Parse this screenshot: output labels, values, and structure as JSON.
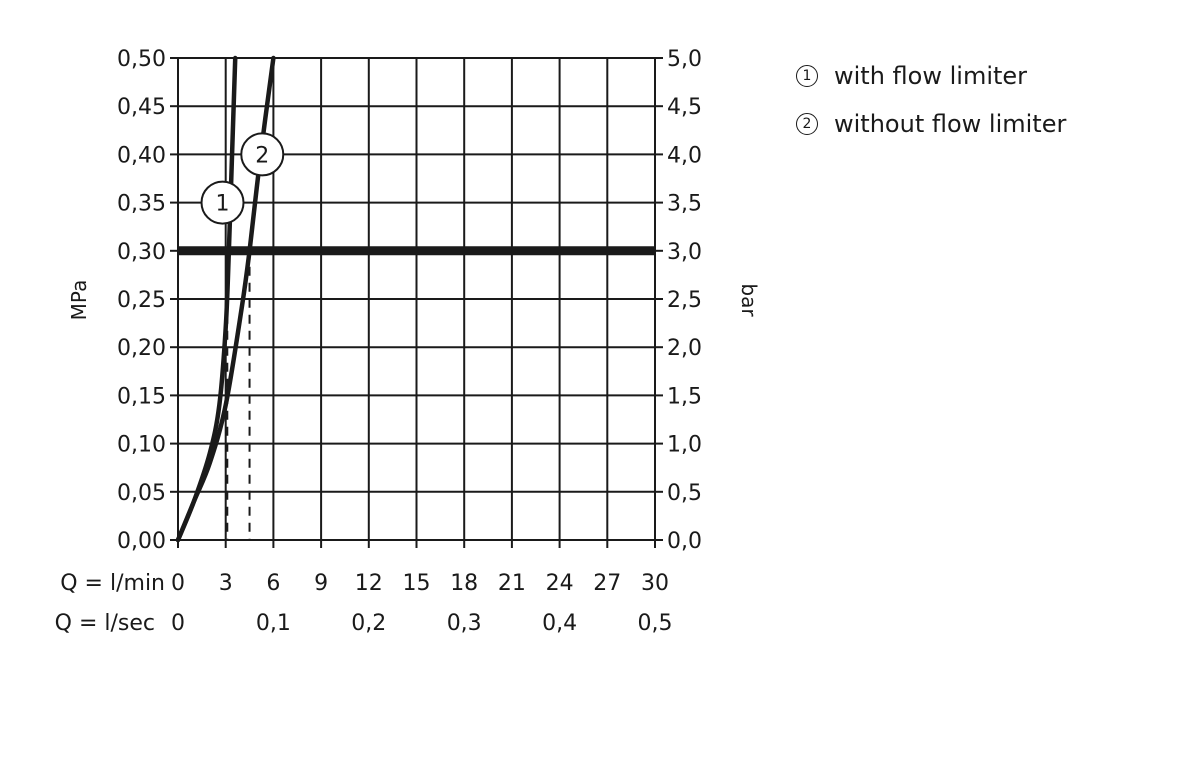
{
  "chart_data": {
    "type": "line",
    "ylabel_left": "MPa",
    "ylabel_right": "bar",
    "x_row1_label": "Q = l/min",
    "x_row2_label": "Q = l/sec",
    "xlim": [
      0,
      30
    ],
    "ylim": [
      0,
      0.5
    ],
    "y_left_ticks": [
      "0,00",
      "0,05",
      "0,10",
      "0,15",
      "0,20",
      "0,25",
      "0,30",
      "0,35",
      "0,40",
      "0,45",
      "0,50"
    ],
    "y_right_ticks": [
      "0,0",
      "0,5",
      "1,0",
      "1,5",
      "2,0",
      "2,5",
      "3,0",
      "3,5",
      "4,0",
      "4,5",
      "5,0"
    ],
    "x_ticks_lmin": [
      "0",
      "3",
      "6",
      "9",
      "12",
      "15",
      "18",
      "21",
      "24",
      "27",
      "30"
    ],
    "x_ticks_lsec": [
      {
        "x": 0,
        "label": "0"
      },
      {
        "x": 6,
        "label": "0,1"
      },
      {
        "x": 12,
        "label": "0,2"
      },
      {
        "x": 18,
        "label": "0,3"
      },
      {
        "x": 24,
        "label": "0,4"
      },
      {
        "x": 30,
        "label": "0,5"
      }
    ],
    "grid": true,
    "reference_line": {
      "y": 0.3
    },
    "series": [
      {
        "marker": "1",
        "x": [
          0,
          1,
          2,
          2.6,
          3.0,
          3.2,
          3.4,
          3.6
        ],
        "y": [
          0,
          0.04,
          0.09,
          0.14,
          0.22,
          0.3,
          0.4,
          0.5
        ],
        "drop_x": 3.1
      },
      {
        "marker": "2",
        "x": [
          0,
          1,
          2,
          3,
          4,
          4.5,
          5.2,
          6.0
        ],
        "y": [
          0,
          0.04,
          0.08,
          0.14,
          0.24,
          0.3,
          0.4,
          0.5
        ],
        "drop_x": 4.5
      }
    ],
    "series_markers": [
      {
        "text": "1",
        "x": 2.8,
        "y": 0.35
      },
      {
        "text": "2",
        "x": 5.3,
        "y": 0.4
      }
    ]
  },
  "legend": {
    "items": [
      {
        "marker": "1",
        "label": "with flow limiter"
      },
      {
        "marker": "2",
        "label": "without flow limiter"
      }
    ]
  }
}
